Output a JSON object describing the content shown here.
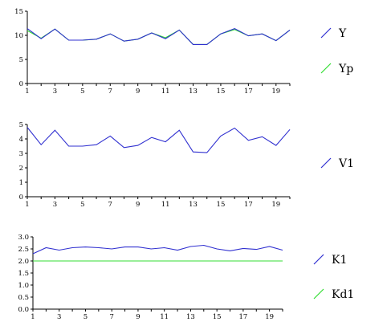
{
  "chart_data": [
    {
      "type": "line",
      "x": [
        1,
        2,
        3,
        4,
        5,
        6,
        7,
        8,
        9,
        10,
        11,
        12,
        13,
        14,
        15,
        16,
        17,
        18,
        19,
        20
      ],
      "x_tick_labels": [
        "1",
        "3",
        "5",
        "7",
        "9",
        "11",
        "13",
        "15",
        "17",
        "19"
      ],
      "y_tick_labels": [
        "0",
        "5",
        "10",
        "15"
      ],
      "ylim": [
        0,
        15
      ],
      "grid": false,
      "legend_position": "right",
      "series": [
        {
          "name": "Y",
          "color": "#3030d0",
          "values": [
            11.4,
            9.3,
            11.3,
            9.0,
            9.0,
            9.2,
            10.3,
            8.8,
            9.2,
            10.5,
            9.3,
            11.1,
            8.1,
            8.1,
            10.3,
            11.4,
            9.9,
            10.3,
            8.9,
            11.1
          ]
        },
        {
          "name": "Yp",
          "color": "#33dd33",
          "values": [
            11.0,
            9.4,
            11.3,
            9.0,
            9.0,
            9.2,
            10.3,
            8.8,
            9.2,
            10.5,
            9.5,
            11.1,
            8.1,
            8.1,
            10.3,
            11.2,
            9.9,
            10.3,
            8.9,
            11.1
          ]
        }
      ]
    },
    {
      "type": "line",
      "x": [
        1,
        2,
        3,
        4,
        5,
        6,
        7,
        8,
        9,
        10,
        11,
        12,
        13,
        14,
        15,
        16,
        17,
        18,
        19,
        20
      ],
      "x_tick_labels": [
        "1",
        "3",
        "5",
        "7",
        "9",
        "11",
        "13",
        "15",
        "17",
        "19"
      ],
      "y_tick_labels": [
        "0",
        "1",
        "2",
        "3",
        "4",
        "5"
      ],
      "ylim": [
        0,
        5
      ],
      "grid": false,
      "legend_position": "right",
      "series": [
        {
          "name": "V1",
          "color": "#3030d0",
          "values": [
            4.8,
            3.6,
            4.6,
            3.5,
            3.5,
            3.6,
            4.2,
            3.4,
            3.55,
            4.1,
            3.8,
            4.6,
            3.1,
            3.05,
            4.2,
            4.75,
            3.9,
            4.15,
            3.55,
            4.65
          ]
        }
      ]
    },
    {
      "type": "line",
      "x": [
        1,
        2,
        3,
        4,
        5,
        6,
        7,
        8,
        9,
        10,
        11,
        12,
        13,
        14,
        15,
        16,
        17,
        18,
        19,
        20
      ],
      "x_tick_labels": [
        "1",
        "3",
        "5",
        "7",
        "9",
        "11",
        "13",
        "15",
        "17",
        "19"
      ],
      "y_tick_labels": [
        "0.0",
        "0.5",
        "1.0",
        "1.5",
        "2.0",
        "2.5",
        "3.0"
      ],
      "ylim": [
        0,
        3.0
      ],
      "grid": false,
      "legend_position": "right",
      "series": [
        {
          "name": "K1",
          "color": "#3030d0",
          "values": [
            2.3,
            2.55,
            2.45,
            2.55,
            2.58,
            2.55,
            2.5,
            2.58,
            2.58,
            2.5,
            2.55,
            2.45,
            2.6,
            2.65,
            2.5,
            2.42,
            2.52,
            2.48,
            2.6,
            2.45
          ]
        },
        {
          "name": "Kd1",
          "color": "#33dd33",
          "values": [
            2.0,
            2.0,
            2.0,
            2.0,
            2.0,
            2.0,
            2.0,
            2.0,
            2.0,
            2.0,
            2.0,
            2.0,
            2.0,
            2.0,
            2.0,
            2.0,
            2.0,
            2.0,
            2.0,
            2.0
          ]
        }
      ]
    }
  ]
}
